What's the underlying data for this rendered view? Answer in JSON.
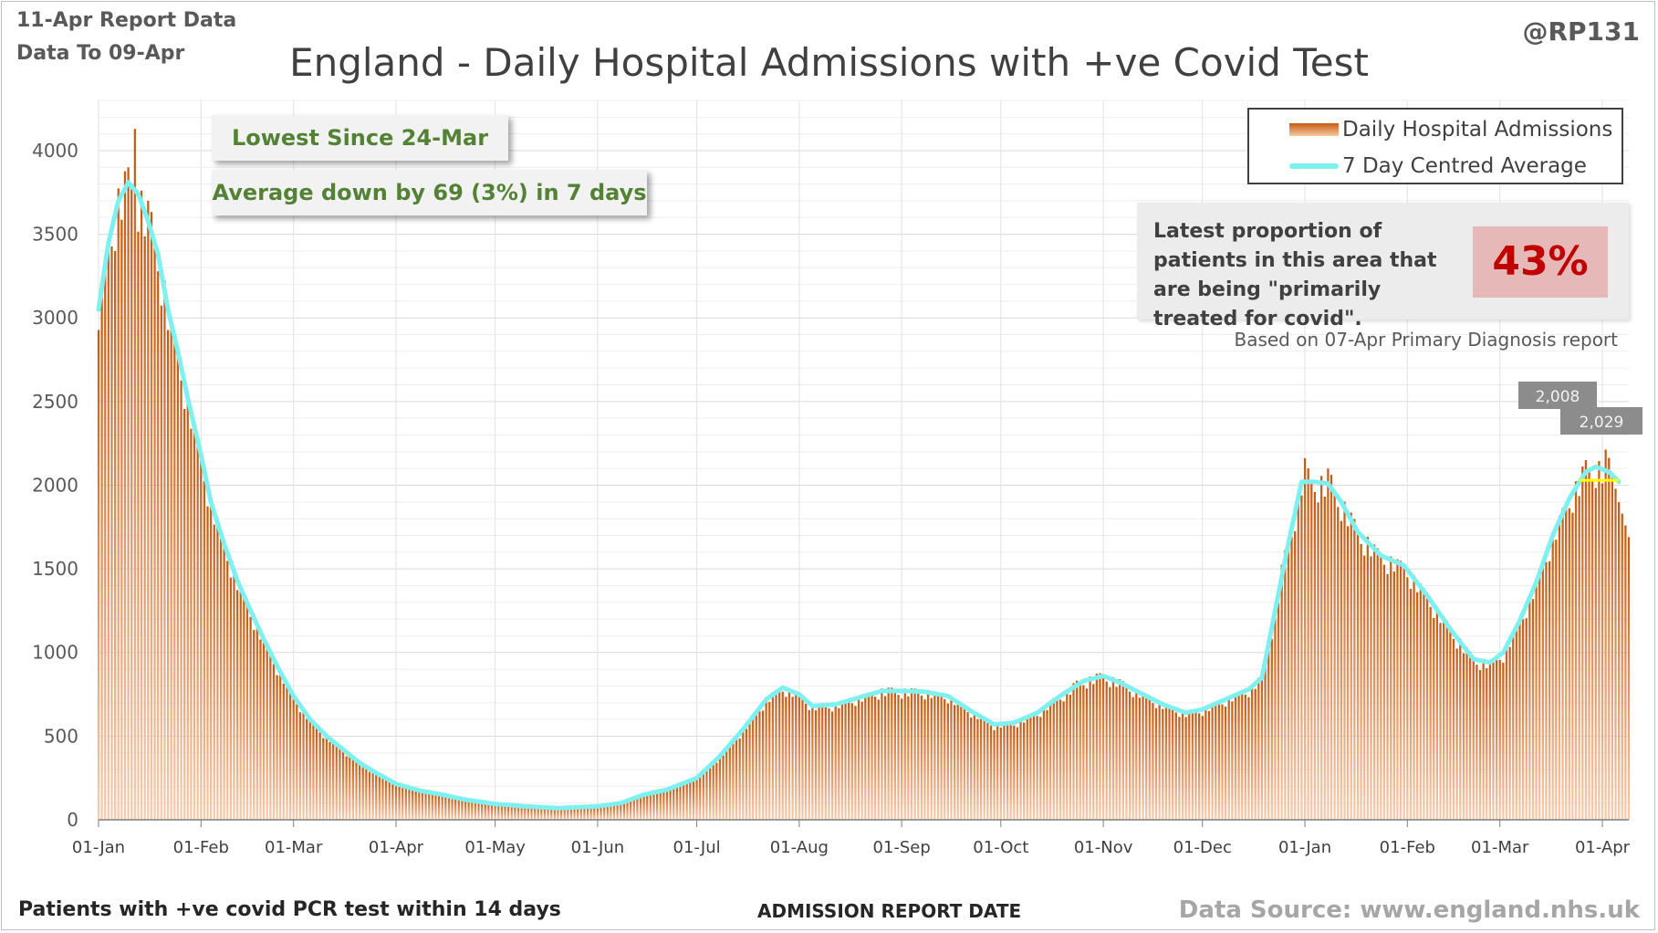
{
  "header": {
    "report_date": "11-Apr Report Data",
    "data_to": "Data To 09-Apr",
    "title": "England - Daily Hospital Admissions with +ve Covid Test",
    "handle": "@RP131"
  },
  "callouts": {
    "lowest": "Lowest Since 24-Mar",
    "average": "Average down by 69 (3%) in 7 days"
  },
  "legend": {
    "bars": "Daily Hospital Admissions",
    "line": "7 Day Centred Average"
  },
  "proportion": {
    "text": "Latest proportion of patients in this area that are being \"primarily treated for covid\".",
    "value": "43%",
    "note": "Based on 07-Apr Primary Diagnosis report"
  },
  "footer": {
    "left": "Patients with +ve covid PCR test within 14 days",
    "xlabel": "ADMISSION  REPORT DATE",
    "source": "Data Source: www.england.nhs.uk"
  },
  "colors": {
    "bar_top": "#c55a11",
    "bar_bottom": "#f8cbad",
    "average_line": "#7ff0f0",
    "highlight_line": "#ffff00",
    "grid": "#d9d9d9",
    "label_box": "#8c8c8c"
  },
  "chart_data": {
    "type": "bar",
    "title": "England - Daily Hospital Admissions with +ve Covid Test",
    "xlabel": "ADMISSION  REPORT DATE",
    "ylabel": "",
    "ylim": [
      0,
      4300
    ],
    "yticks": [
      0,
      500,
      1000,
      1500,
      2000,
      2500,
      3000,
      3500,
      4000
    ],
    "grid": true,
    "legend_position": "top-right",
    "x_start": "2021-01-01",
    "x_end": "2022-04-09",
    "xtick_labels": [
      "01-Jan",
      "01-Feb",
      "01-Mar",
      "01-Apr",
      "01-May",
      "01-Jun",
      "01-Jul",
      "01-Aug",
      "01-Sep",
      "01-Oct",
      "01-Nov",
      "01-Dec",
      "01-Jan",
      "01-Feb",
      "01-Mar",
      "01-Apr"
    ],
    "xtick_dates": [
      "2021-01-01",
      "2021-02-01",
      "2021-03-01",
      "2021-04-01",
      "2021-05-01",
      "2021-06-01",
      "2021-07-01",
      "2021-08-01",
      "2021-09-01",
      "2021-10-01",
      "2021-11-01",
      "2021-12-01",
      "2022-01-01",
      "2022-02-01",
      "2022-03-01",
      "2022-04-01"
    ],
    "series": [
      {
        "name": "7 Day Centred Average",
        "type": "line",
        "points": [
          [
            "2021-01-01",
            3050
          ],
          [
            "2021-01-04",
            3450
          ],
          [
            "2021-01-07",
            3700
          ],
          [
            "2021-01-10",
            3810
          ],
          [
            "2021-01-13",
            3740
          ],
          [
            "2021-01-16",
            3580
          ],
          [
            "2021-01-19",
            3380
          ],
          [
            "2021-01-22",
            3050
          ],
          [
            "2021-01-25",
            2800
          ],
          [
            "2021-01-28",
            2520
          ],
          [
            "2021-02-01",
            2180
          ],
          [
            "2021-02-04",
            1900
          ],
          [
            "2021-02-08",
            1650
          ],
          [
            "2021-02-12",
            1430
          ],
          [
            "2021-02-16",
            1250
          ],
          [
            "2021-02-20",
            1080
          ],
          [
            "2021-02-24",
            920
          ],
          [
            "2021-03-01",
            740
          ],
          [
            "2021-03-06",
            600
          ],
          [
            "2021-03-11",
            500
          ],
          [
            "2021-03-16",
            420
          ],
          [
            "2021-03-21",
            340
          ],
          [
            "2021-03-26",
            280
          ],
          [
            "2021-04-01",
            215
          ],
          [
            "2021-04-08",
            175
          ],
          [
            "2021-04-15",
            150
          ],
          [
            "2021-04-22",
            120
          ],
          [
            "2021-05-01",
            95
          ],
          [
            "2021-05-10",
            80
          ],
          [
            "2021-05-20",
            70
          ],
          [
            "2021-06-01",
            80
          ],
          [
            "2021-06-08",
            100
          ],
          [
            "2021-06-15",
            150
          ],
          [
            "2021-06-22",
            180
          ],
          [
            "2021-07-01",
            250
          ],
          [
            "2021-07-08",
            380
          ],
          [
            "2021-07-15",
            540
          ],
          [
            "2021-07-22",
            720
          ],
          [
            "2021-07-27",
            790
          ],
          [
            "2021-08-01",
            750
          ],
          [
            "2021-08-05",
            680
          ],
          [
            "2021-08-12",
            690
          ],
          [
            "2021-08-19",
            730
          ],
          [
            "2021-08-26",
            770
          ],
          [
            "2021-09-01",
            770
          ],
          [
            "2021-09-08",
            765
          ],
          [
            "2021-09-15",
            740
          ],
          [
            "2021-09-22",
            650
          ],
          [
            "2021-09-29",
            570
          ],
          [
            "2021-10-05",
            580
          ],
          [
            "2021-10-12",
            640
          ],
          [
            "2021-10-19",
            740
          ],
          [
            "2021-10-26",
            830
          ],
          [
            "2021-11-01",
            860
          ],
          [
            "2021-11-06",
            820
          ],
          [
            "2021-11-12",
            760
          ],
          [
            "2021-11-19",
            690
          ],
          [
            "2021-11-26",
            640
          ],
          [
            "2021-12-01",
            660
          ],
          [
            "2021-12-08",
            720
          ],
          [
            "2021-12-15",
            780
          ],
          [
            "2021-12-19",
            850
          ],
          [
            "2021-12-23",
            1250
          ],
          [
            "2021-12-27",
            1650
          ],
          [
            "2021-12-31",
            2020
          ],
          [
            "2022-01-04",
            2020
          ],
          [
            "2022-01-08",
            2010
          ],
          [
            "2022-01-12",
            1900
          ],
          [
            "2022-01-17",
            1720
          ],
          [
            "2022-01-24",
            1580
          ],
          [
            "2022-01-31",
            1520
          ],
          [
            "2022-02-07",
            1340
          ],
          [
            "2022-02-14",
            1140
          ],
          [
            "2022-02-21",
            960
          ],
          [
            "2022-02-26",
            940
          ],
          [
            "2022-03-02",
            1000
          ],
          [
            "2022-03-07",
            1190
          ],
          [
            "2022-03-12",
            1420
          ],
          [
            "2022-03-17",
            1700
          ],
          [
            "2022-03-22",
            1920
          ],
          [
            "2022-03-27",
            2080
          ],
          [
            "2022-03-30",
            2110
          ],
          [
            "2022-04-03",
            2080
          ],
          [
            "2022-04-06",
            2020
          ]
        ]
      },
      {
        "name": "Daily Hospital Admissions",
        "type": "bar",
        "date_range": [
          "2021-01-01",
          "2022-04-09"
        ],
        "envelope": [
          [
            "2021-01-01",
            3000
          ],
          [
            "2021-01-04",
            3450
          ],
          [
            "2021-01-07",
            3830
          ],
          [
            "2021-01-10",
            3900
          ],
          [
            "2021-01-12",
            4130
          ],
          [
            "2021-01-16",
            3700
          ],
          [
            "2021-01-19",
            3500
          ],
          [
            "2021-01-22",
            3100
          ],
          [
            "2021-01-25",
            2820
          ],
          [
            "2021-01-28",
            2520
          ],
          [
            "2021-02-01",
            2150
          ],
          [
            "2021-02-04",
            1900
          ],
          [
            "2021-02-08",
            1660
          ],
          [
            "2021-02-12",
            1440
          ],
          [
            "2021-02-16",
            1260
          ],
          [
            "2021-02-20",
            1090
          ],
          [
            "2021-02-24",
            930
          ],
          [
            "2021-03-01",
            740
          ],
          [
            "2021-03-06",
            600
          ],
          [
            "2021-03-11",
            500
          ],
          [
            "2021-03-16",
            420
          ],
          [
            "2021-03-21",
            340
          ],
          [
            "2021-03-26",
            280
          ],
          [
            "2021-04-01",
            215
          ],
          [
            "2021-04-08",
            175
          ],
          [
            "2021-04-15",
            150
          ],
          [
            "2021-04-22",
            120
          ],
          [
            "2021-05-01",
            95
          ],
          [
            "2021-05-10",
            80
          ],
          [
            "2021-05-20",
            72
          ],
          [
            "2021-06-01",
            82
          ],
          [
            "2021-06-08",
            102
          ],
          [
            "2021-06-15",
            155
          ],
          [
            "2021-06-22",
            180
          ],
          [
            "2021-07-01",
            255
          ],
          [
            "2021-07-08",
            390
          ],
          [
            "2021-07-15",
            550
          ],
          [
            "2021-07-22",
            740
          ],
          [
            "2021-07-27",
            800
          ],
          [
            "2021-08-01",
            760
          ],
          [
            "2021-08-05",
            690
          ],
          [
            "2021-08-12",
            700
          ],
          [
            "2021-08-19",
            740
          ],
          [
            "2021-08-26",
            790
          ],
          [
            "2021-09-01",
            790
          ],
          [
            "2021-09-08",
            780
          ],
          [
            "2021-09-15",
            750
          ],
          [
            "2021-09-22",
            660
          ],
          [
            "2021-09-29",
            580
          ],
          [
            "2021-10-05",
            590
          ],
          [
            "2021-10-12",
            650
          ],
          [
            "2021-10-19",
            760
          ],
          [
            "2021-10-26",
            860
          ],
          [
            "2021-11-01",
            880
          ],
          [
            "2021-11-06",
            840
          ],
          [
            "2021-11-12",
            770
          ],
          [
            "2021-11-19",
            700
          ],
          [
            "2021-11-26",
            650
          ],
          [
            "2021-12-01",
            670
          ],
          [
            "2021-12-08",
            730
          ],
          [
            "2021-12-15",
            790
          ],
          [
            "2021-12-19",
            870
          ],
          [
            "2021-12-23",
            1300
          ],
          [
            "2021-12-27",
            1750
          ],
          [
            "2021-12-31",
            2300
          ],
          [
            "2022-01-04",
            2150
          ],
          [
            "2022-01-08",
            2100
          ],
          [
            "2022-01-12",
            1950
          ],
          [
            "2022-01-17",
            1760
          ],
          [
            "2022-01-24",
            1600
          ],
          [
            "2022-01-31",
            1540
          ],
          [
            "2022-02-07",
            1360
          ],
          [
            "2022-02-14",
            1160
          ],
          [
            "2022-02-21",
            980
          ],
          [
            "2022-02-26",
            950
          ],
          [
            "2022-03-02",
            1010
          ],
          [
            "2022-03-07",
            1200
          ],
          [
            "2022-03-12",
            1440
          ],
          [
            "2022-03-17",
            1720
          ],
          [
            "2022-03-22",
            1960
          ],
          [
            "2022-03-27",
            2150
          ],
          [
            "2022-03-30",
            2250
          ],
          [
            "2022-04-03",
            2200
          ],
          [
            "2022-04-06",
            1900
          ],
          [
            "2022-04-09",
            1690
          ]
        ]
      }
    ],
    "annotations": [
      {
        "label": "2,008",
        "date": "2022-03-28"
      },
      {
        "label": "2,029",
        "date": "2022-04-02"
      }
    ]
  }
}
